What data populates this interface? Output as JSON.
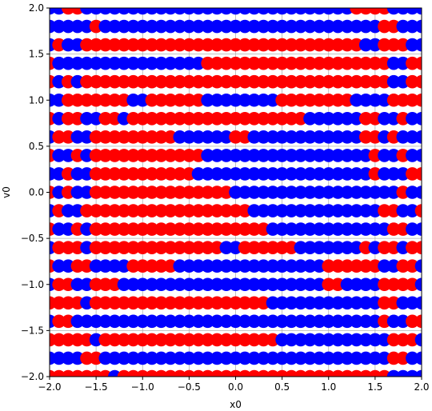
{
  "chart_data": {
    "type": "scatter",
    "xlabel": "x0",
    "ylabel": "v0",
    "xlim": [
      -2.0,
      2.0
    ],
    "ylim": [
      -2.0,
      2.0
    ],
    "x_ticks": [
      -2.0,
      -1.5,
      -1.0,
      -0.5,
      0.0,
      0.5,
      1.0,
      1.5,
      2.0
    ],
    "y_ticks": [
      -2.0,
      -1.5,
      -1.0,
      -0.5,
      0.0,
      0.5,
      1.0,
      1.5,
      2.0
    ],
    "x_tick_labels": [
      "−2.0",
      "−1.5",
      "−1.0",
      "−0.5",
      "0.0",
      "0.5",
      "1.0",
      "1.5",
      "2.0"
    ],
    "y_tick_labels": [
      "−2.0",
      "−1.5",
      "−1.0",
      "−0.5",
      "0.0",
      "0.5",
      "1.0",
      "1.5",
      "2.0"
    ],
    "grid": true,
    "point_grid": {
      "x_start": -2.0,
      "x_end": 2.0,
      "x_count": 41,
      "v_start": -2.0,
      "v_end": 2.0,
      "v_count": 21
    },
    "series": [
      {
        "color": "#0000ff"
      },
      {
        "color": "#ff0000"
      }
    ],
    "rows": [
      {
        "v": -2.0,
        "runs": [
          [
            -2.0,
            "r"
          ],
          [
            -1.3,
            "b"
          ],
          [
            -1.2,
            "r"
          ],
          [
            1.7,
            "b"
          ]
        ]
      },
      {
        "v": -1.8,
        "runs": [
          [
            -2.0,
            "b"
          ],
          [
            -1.6,
            "r"
          ],
          [
            -1.4,
            "b"
          ],
          [
            1.7,
            "r"
          ],
          [
            1.9,
            "b"
          ]
        ]
      },
      {
        "v": -1.6,
        "runs": [
          [
            -2.0,
            "r"
          ],
          [
            -1.5,
            "b"
          ],
          [
            -1.4,
            "r"
          ],
          [
            0.5,
            "b"
          ],
          [
            1.7,
            "r"
          ],
          [
            2.0,
            "b"
          ]
        ]
      },
      {
        "v": -1.4,
        "runs": [
          [
            -2.0,
            "b"
          ],
          [
            -1.9,
            "r"
          ],
          [
            -1.7,
            "b"
          ],
          [
            1.6,
            "r"
          ],
          [
            1.7,
            "b"
          ],
          [
            1.9,
            "r"
          ]
        ]
      },
      {
        "v": -1.2,
        "runs": [
          [
            -2.0,
            "r"
          ],
          [
            -1.6,
            "b"
          ],
          [
            -1.5,
            "r"
          ],
          [
            0.4,
            "b"
          ],
          [
            1.6,
            "r"
          ],
          [
            1.8,
            "b"
          ]
        ]
      },
      {
        "v": -1.0,
        "runs": [
          [
            -2.0,
            "b"
          ],
          [
            -1.9,
            "r"
          ],
          [
            -1.7,
            "b"
          ],
          [
            -1.5,
            "r"
          ],
          [
            -1.2,
            "b"
          ],
          [
            1.0,
            "r"
          ],
          [
            1.2,
            "b"
          ],
          [
            1.6,
            "r"
          ],
          [
            2.0,
            "b"
          ]
        ]
      },
      {
        "v": -0.8,
        "runs": [
          [
            -2.0,
            "r"
          ],
          [
            -1.9,
            "b"
          ],
          [
            -1.7,
            "r"
          ],
          [
            -1.5,
            "b"
          ],
          [
            -1.1,
            "r"
          ],
          [
            -0.6,
            "b"
          ],
          [
            1.0,
            "r"
          ],
          [
            1.6,
            "b"
          ],
          [
            1.8,
            "r"
          ],
          [
            2.0,
            "b"
          ]
        ]
      },
      {
        "v": -0.6,
        "runs": [
          [
            -2.0,
            "b"
          ],
          [
            -1.9,
            "r"
          ],
          [
            -1.6,
            "b"
          ],
          [
            -1.5,
            "r"
          ],
          [
            -0.1,
            "b"
          ],
          [
            0.1,
            "r"
          ],
          [
            0.7,
            "b"
          ],
          [
            1.4,
            "r"
          ],
          [
            1.5,
            "b"
          ],
          [
            1.6,
            "r"
          ],
          [
            1.8,
            "b"
          ],
          [
            1.9,
            "r"
          ]
        ]
      },
      {
        "v": -0.4,
        "runs": [
          [
            -2.0,
            "r"
          ],
          [
            -1.9,
            "b"
          ],
          [
            -1.7,
            "r"
          ],
          [
            -1.6,
            "b"
          ],
          [
            -1.5,
            "r"
          ],
          [
            0.4,
            "b"
          ],
          [
            1.7,
            "r"
          ],
          [
            1.9,
            "b"
          ]
        ]
      },
      {
        "v": -0.2,
        "runs": [
          [
            -2.0,
            "b"
          ],
          [
            -1.9,
            "r"
          ],
          [
            -1.8,
            "b"
          ],
          [
            -1.6,
            "r"
          ],
          [
            0.2,
            "b"
          ],
          [
            1.6,
            "r"
          ],
          [
            1.8,
            "b"
          ],
          [
            2.0,
            "r"
          ]
        ]
      },
      {
        "v": 0.0,
        "runs": [
          [
            -2.0,
            "r"
          ],
          [
            -1.9,
            "b"
          ],
          [
            -1.8,
            "r"
          ],
          [
            -1.7,
            "b"
          ],
          [
            -1.5,
            "r"
          ],
          [
            0.0,
            "b"
          ],
          [
            1.8,
            "r"
          ],
          [
            1.9,
            "b"
          ]
        ]
      },
      {
        "v": 0.2,
        "runs": [
          [
            -2.0,
            "b"
          ],
          [
            -1.8,
            "r"
          ],
          [
            -1.7,
            "b"
          ],
          [
            -1.5,
            "r"
          ],
          [
            -0.4,
            "b"
          ],
          [
            1.5,
            "r"
          ],
          [
            1.6,
            "b"
          ],
          [
            1.9,
            "r"
          ]
        ]
      },
      {
        "v": 0.4,
        "runs": [
          [
            -2.0,
            "r"
          ],
          [
            -1.9,
            "b"
          ],
          [
            -1.7,
            "r"
          ],
          [
            -1.6,
            "b"
          ],
          [
            -1.5,
            "r"
          ],
          [
            -0.3,
            "b"
          ],
          [
            1.5,
            "r"
          ],
          [
            1.6,
            "b"
          ],
          [
            1.8,
            "r"
          ],
          [
            1.9,
            "b"
          ]
        ]
      },
      {
        "v": 0.6,
        "runs": [
          [
            -2.0,
            "b"
          ],
          [
            -1.9,
            "r"
          ],
          [
            -1.7,
            "b"
          ],
          [
            -1.5,
            "r"
          ],
          [
            -0.6,
            "b"
          ],
          [
            0.0,
            "r"
          ],
          [
            0.2,
            "b"
          ],
          [
            1.4,
            "r"
          ],
          [
            1.6,
            "b"
          ],
          [
            1.7,
            "r"
          ],
          [
            1.8,
            "b"
          ]
        ]
      },
      {
        "v": 0.8,
        "runs": [
          [
            -2.0,
            "r"
          ],
          [
            -1.9,
            "b"
          ],
          [
            -1.8,
            "r"
          ],
          [
            -1.6,
            "b"
          ],
          [
            -1.4,
            "r"
          ],
          [
            -1.2,
            "b"
          ],
          [
            -1.1,
            "r"
          ],
          [
            0.8,
            "b"
          ],
          [
            1.4,
            "r"
          ],
          [
            1.6,
            "b"
          ],
          [
            1.8,
            "r"
          ],
          [
            1.9,
            "b"
          ]
        ]
      },
      {
        "v": 1.0,
        "runs": [
          [
            -2.0,
            "b"
          ],
          [
            -1.8,
            "r"
          ],
          [
            -1.1,
            "b"
          ],
          [
            -0.9,
            "r"
          ],
          [
            -0.3,
            "b"
          ],
          [
            0.5,
            "r"
          ],
          [
            1.3,
            "b"
          ],
          [
            1.7,
            "r"
          ]
        ]
      },
      {
        "v": 1.2,
        "runs": [
          [
            -2.0,
            "r"
          ],
          [
            -1.9,
            "b"
          ],
          [
            -1.8,
            "r"
          ],
          [
            -1.7,
            "b"
          ],
          [
            -1.6,
            "r"
          ],
          [
            1.7,
            "b"
          ],
          [
            1.9,
            "r"
          ]
        ]
      },
      {
        "v": 1.4,
        "runs": [
          [
            -2.0,
            "r"
          ],
          [
            -1.9,
            "b"
          ],
          [
            -0.3,
            "r"
          ],
          [
            1.7,
            "b"
          ],
          [
            1.9,
            "r"
          ]
        ]
      },
      {
        "v": 1.6,
        "runs": [
          [
            -2.0,
            "b"
          ],
          [
            -1.9,
            "r"
          ],
          [
            -1.8,
            "b"
          ],
          [
            -1.6,
            "r"
          ],
          [
            1.4,
            "b"
          ],
          [
            1.6,
            "r"
          ],
          [
            1.9,
            "b"
          ]
        ]
      },
      {
        "v": 1.8,
        "runs": [
          [
            -2.0,
            "b"
          ],
          [
            -1.5,
            "r"
          ],
          [
            -1.4,
            "b"
          ],
          [
            1.6,
            "r"
          ],
          [
            1.8,
            "b"
          ]
        ]
      },
      {
        "v": 2.0,
        "runs": [
          [
            -2.0,
            "b"
          ],
          [
            -1.8,
            "r"
          ],
          [
            -1.6,
            "b"
          ],
          [
            1.3,
            "r"
          ],
          [
            1.7,
            "b"
          ]
        ]
      }
    ]
  }
}
